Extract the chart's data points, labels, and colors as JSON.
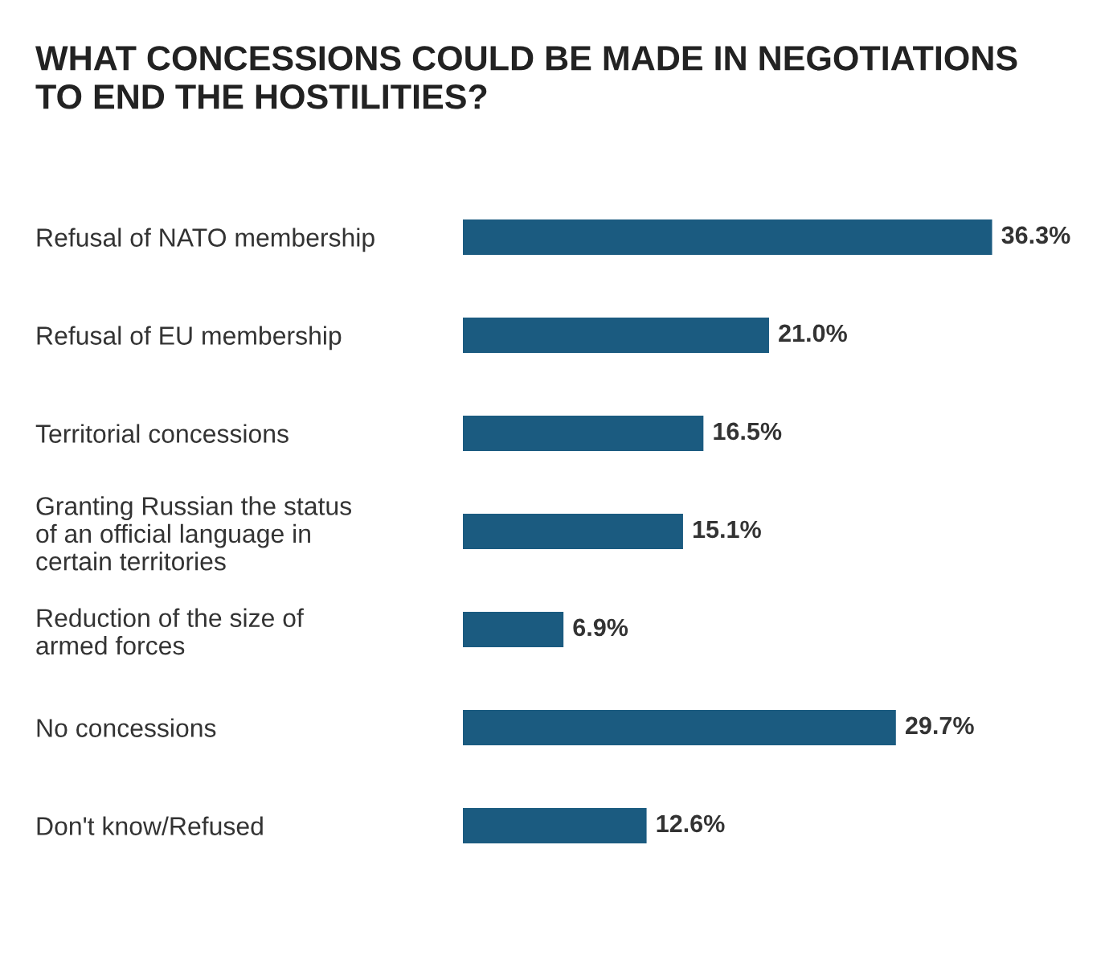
{
  "chart_data": {
    "type": "bar",
    "orientation": "horizontal",
    "title": "WHAT CONCESSIONS COULD BE MADE IN NEGOTIATIONS\nTO END THE HOSTILITIES?",
    "categories": [
      "Refusal of NATO membership",
      "Refusal of EU membership",
      "Territorial concessions",
      "Granting Russian the status\nof an official language in\ncertain territories",
      "Reduction of the size of\narmed forces",
      "No concessions",
      "Don't know/Refused"
    ],
    "values": [
      36.3,
      21.0,
      16.5,
      15.1,
      6.9,
      29.7,
      12.6
    ],
    "value_labels": [
      "36.3%",
      "21.0%",
      "16.5%",
      "15.1%",
      "6.9%",
      "29.7%",
      "12.6%"
    ],
    "color": "#1b5b80",
    "grid": false,
    "legend": false
  }
}
